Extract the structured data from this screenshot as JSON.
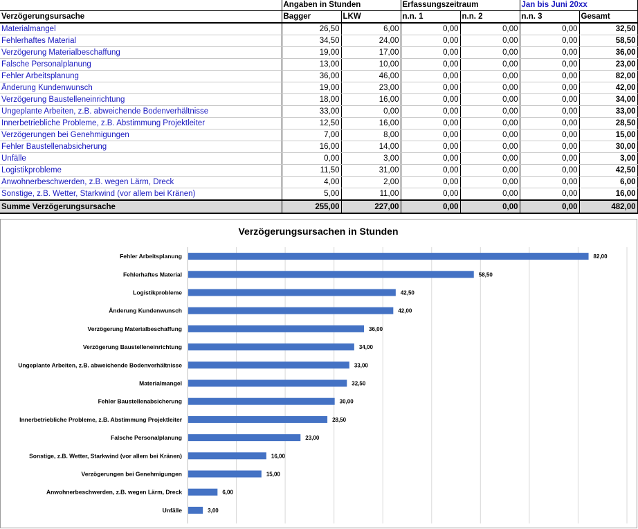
{
  "table": {
    "top_row": [
      "",
      "Angaben in Stunden",
      "",
      "Erfassungszeitraum",
      "",
      "Jan bis Juni 20xx",
      "",
      ""
    ],
    "header": [
      "Verzögerungsursache",
      "Bagger",
      "LKW",
      "n.n. 1",
      "n.n. 2",
      "n.n. 3",
      "Gesamt"
    ],
    "rows": [
      {
        "cause": "Materialmangel",
        "values": [
          "26,50",
          "6,00",
          "0,00",
          "0,00",
          "0,00"
        ],
        "total": "32,50"
      },
      {
        "cause": "Fehlerhaftes Material",
        "values": [
          "34,50",
          "24,00",
          "0,00",
          "0,00",
          "0,00"
        ],
        "total": "58,50"
      },
      {
        "cause": "Verzögerung Materialbeschaffung",
        "values": [
          "19,00",
          "17,00",
          "0,00",
          "0,00",
          "0,00"
        ],
        "total": "36,00"
      },
      {
        "cause": "Falsche Personalplanung",
        "values": [
          "13,00",
          "10,00",
          "0,00",
          "0,00",
          "0,00"
        ],
        "total": "23,00"
      },
      {
        "cause": "Fehler Arbeitsplanung",
        "values": [
          "36,00",
          "46,00",
          "0,00",
          "0,00",
          "0,00"
        ],
        "total": "82,00"
      },
      {
        "cause": "Änderung Kundenwunsch",
        "values": [
          "19,00",
          "23,00",
          "0,00",
          "0,00",
          "0,00"
        ],
        "total": "42,00"
      },
      {
        "cause": "Verzögerung Baustelleneinrichtung",
        "values": [
          "18,00",
          "16,00",
          "0,00",
          "0,00",
          "0,00"
        ],
        "total": "34,00"
      },
      {
        "cause": "Ungeplante Arbeiten, z.B. abweichende Bodenverhältnisse",
        "values": [
          "33,00",
          "0,00",
          "0,00",
          "0,00",
          "0,00"
        ],
        "total": "33,00"
      },
      {
        "cause": "Innerbetriebliche Probleme, z.B. Abstimmung Projektleiter",
        "values": [
          "12,50",
          "16,00",
          "0,00",
          "0,00",
          "0,00"
        ],
        "total": "28,50"
      },
      {
        "cause": "Verzögerungen bei Genehmigungen",
        "values": [
          "7,00",
          "8,00",
          "0,00",
          "0,00",
          "0,00"
        ],
        "total": "15,00"
      },
      {
        "cause": "Fehler Baustellenabsicherung",
        "values": [
          "16,00",
          "14,00",
          "0,00",
          "0,00",
          "0,00"
        ],
        "total": "30,00"
      },
      {
        "cause": "Unfälle",
        "values": [
          "0,00",
          "3,00",
          "0,00",
          "0,00",
          "0,00"
        ],
        "total": "3,00"
      },
      {
        "cause": "Logistikprobleme",
        "values": [
          "11,50",
          "31,00",
          "0,00",
          "0,00",
          "0,00"
        ],
        "total": "42,50"
      },
      {
        "cause": "Anwohnerbeschwerden, z.B. wegen Lärm, Dreck",
        "values": [
          "4,00",
          "2,00",
          "0,00",
          "0,00",
          "0,00"
        ],
        "total": "6,00"
      },
      {
        "cause": "Sonstige, z.B. Wetter, Starkwind (vor allem bei Kränen)",
        "values": [
          "5,00",
          "11,00",
          "0,00",
          "0,00",
          "0,00"
        ],
        "total": "16,00"
      }
    ],
    "sum_row": {
      "label": "Summe Verzögerungsursache",
      "values": [
        "255,00",
        "227,00",
        "0,00",
        "0,00",
        "0,00"
      ],
      "total": "482,00"
    }
  },
  "chart_data": {
    "type": "bar",
    "orientation": "horizontal",
    "title": "Verzögerungsursachen in Stunden",
    "categories": [
      "Fehler Arbeitsplanung",
      "Fehlerhaftes Material",
      "Logistikprobleme",
      "Änderung Kundenwunsch",
      "Verzögerung Materialbeschaffung",
      "Verzögerung Baustelleneinrichtung",
      "Ungeplante Arbeiten, z.B. abweichende Bodenverhältnisse",
      "Materialmangel",
      "Fehler Baustellenabsicherung",
      "Innerbetriebliche Probleme, z.B. Abstimmung Projektleiter",
      "Falsche Personalplanung",
      "Sonstige, z.B. Wetter, Starkwind (vor allem bei Kränen)",
      "Verzögerungen bei Genehmigungen",
      "Anwohnerbeschwerden, z.B. wegen Lärm, Dreck",
      "Unfälle"
    ],
    "values": [
      82,
      58.5,
      42.5,
      42,
      36,
      34,
      33,
      32.5,
      30,
      28.5,
      23,
      16,
      15,
      6,
      3
    ],
    "value_labels": [
      "82,00",
      "58,50",
      "42,50",
      "42,00",
      "36,00",
      "34,00",
      "33,00",
      "32,50",
      "30,00",
      "28,50",
      "23,00",
      "16,00",
      "15,00",
      "6,00",
      "3,00"
    ],
    "xlim": [
      0,
      90
    ],
    "grid": true,
    "bar_color": "#4472c4",
    "legend": "none"
  }
}
